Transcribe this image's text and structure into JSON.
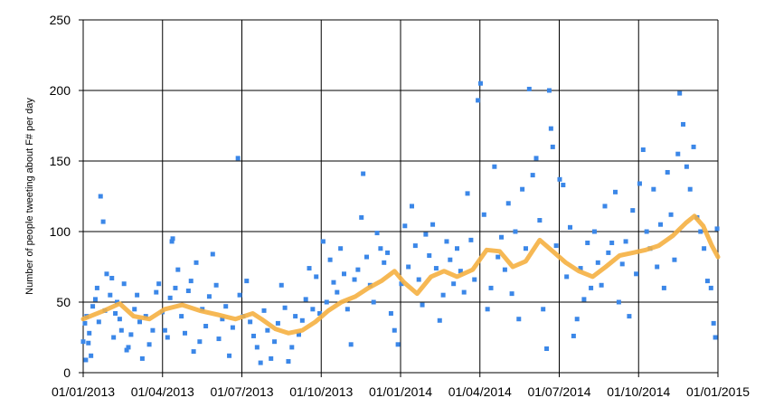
{
  "chart_data": {
    "type": "scatter",
    "title": "",
    "xlabel": "",
    "ylabel": "Number of people tweeting about F# per day",
    "x_tick_labels": [
      "01/01/2013",
      "01/04/2013",
      "01/07/2013",
      "01/10/2013",
      "01/01/2014",
      "01/04/2014",
      "01/07/2014",
      "01/10/2014",
      "01/01/2015"
    ],
    "x_range": [
      "2013-01-01",
      "2015-01-01"
    ],
    "y_tick_labels": [
      "0",
      "50",
      "100",
      "150",
      "200",
      "250"
    ],
    "ylim": [
      0,
      250
    ],
    "grid": true,
    "legend": "none",
    "colors": {
      "points": "#3b87e8",
      "trend": "#f5b041",
      "grid": "#000000"
    },
    "series": [
      {
        "kind": "scatter",
        "points": [
          [
            "2013-01-01",
            22
          ],
          [
            "2013-01-03",
            35
          ],
          [
            "2013-01-04",
            9
          ],
          [
            "2013-01-05",
            40
          ],
          [
            "2013-01-07",
            21
          ],
          [
            "2013-01-08",
            28
          ],
          [
            "2013-01-10",
            12
          ],
          [
            "2013-01-12",
            47
          ],
          [
            "2013-01-15",
            52
          ],
          [
            "2013-01-17",
            60
          ],
          [
            "2013-01-19",
            36
          ],
          [
            "2013-01-21",
            125
          ],
          [
            "2013-01-24",
            107
          ],
          [
            "2013-01-26",
            44
          ],
          [
            "2013-01-28",
            70
          ],
          [
            "2013-02-01",
            55
          ],
          [
            "2013-02-03",
            67
          ],
          [
            "2013-02-05",
            25
          ],
          [
            "2013-02-07",
            42
          ],
          [
            "2013-02-09",
            50
          ],
          [
            "2013-02-12",
            38
          ],
          [
            "2013-02-14",
            30
          ],
          [
            "2013-02-17",
            63
          ],
          [
            "2013-02-20",
            16
          ],
          [
            "2013-02-22",
            18
          ],
          [
            "2013-02-25",
            27
          ],
          [
            "2013-03-01",
            45
          ],
          [
            "2013-03-04",
            55
          ],
          [
            "2013-03-07",
            36
          ],
          [
            "2013-03-10",
            10
          ],
          [
            "2013-03-14",
            40
          ],
          [
            "2013-03-18",
            20
          ],
          [
            "2013-03-22",
            30
          ],
          [
            "2013-03-26",
            57
          ],
          [
            "2013-03-29",
            63
          ],
          [
            "2013-04-02",
            43
          ],
          [
            "2013-04-05",
            30
          ],
          [
            "2013-04-08",
            25
          ],
          [
            "2013-04-11",
            53
          ],
          [
            "2013-04-13",
            93
          ],
          [
            "2013-04-14",
            95
          ],
          [
            "2013-04-17",
            60
          ],
          [
            "2013-04-20",
            73
          ],
          [
            "2013-04-24",
            40
          ],
          [
            "2013-04-28",
            28
          ],
          [
            "2013-05-02",
            58
          ],
          [
            "2013-05-05",
            65
          ],
          [
            "2013-05-08",
            15
          ],
          [
            "2013-05-11",
            78
          ],
          [
            "2013-05-15",
            22
          ],
          [
            "2013-05-18",
            45
          ],
          [
            "2013-05-22",
            33
          ],
          [
            "2013-05-26",
            54
          ],
          [
            "2013-05-30",
            84
          ],
          [
            "2013-06-03",
            62
          ],
          [
            "2013-06-06",
            24
          ],
          [
            "2013-06-10",
            38
          ],
          [
            "2013-06-14",
            47
          ],
          [
            "2013-06-18",
            12
          ],
          [
            "2013-06-22",
            32
          ],
          [
            "2013-06-28",
            152
          ],
          [
            "2013-06-30",
            55
          ],
          [
            "2013-07-04",
            40
          ],
          [
            "2013-07-08",
            65
          ],
          [
            "2013-07-12",
            36
          ],
          [
            "2013-07-16",
            26
          ],
          [
            "2013-07-20",
            18
          ],
          [
            "2013-07-24",
            7
          ],
          [
            "2013-07-28",
            44
          ],
          [
            "2013-08-01",
            30
          ],
          [
            "2013-08-05",
            10
          ],
          [
            "2013-08-09",
            22
          ],
          [
            "2013-08-13",
            35
          ],
          [
            "2013-08-17",
            62
          ],
          [
            "2013-08-21",
            46
          ],
          [
            "2013-08-25",
            8
          ],
          [
            "2013-08-29",
            18
          ],
          [
            "2013-09-02",
            40
          ],
          [
            "2013-09-06",
            27
          ],
          [
            "2013-09-10",
            37
          ],
          [
            "2013-09-14",
            52
          ],
          [
            "2013-09-18",
            74
          ],
          [
            "2013-09-22",
            45
          ],
          [
            "2013-09-26",
            68
          ],
          [
            "2013-09-30",
            42
          ],
          [
            "2013-10-04",
            93
          ],
          [
            "2013-10-08",
            50
          ],
          [
            "2013-10-12",
            80
          ],
          [
            "2013-10-16",
            64
          ],
          [
            "2013-10-20",
            57
          ],
          [
            "2013-10-24",
            88
          ],
          [
            "2013-10-28",
            70
          ],
          [
            "2013-11-01",
            45
          ],
          [
            "2013-11-05",
            20
          ],
          [
            "2013-11-09",
            66
          ],
          [
            "2013-11-13",
            73
          ],
          [
            "2013-11-17",
            110
          ],
          [
            "2013-11-19",
            141
          ],
          [
            "2013-11-23",
            82
          ],
          [
            "2013-11-27",
            62
          ],
          [
            "2013-12-01",
            50
          ],
          [
            "2013-12-05",
            99
          ],
          [
            "2013-12-09",
            88
          ],
          [
            "2013-12-13",
            78
          ],
          [
            "2013-12-17",
            85
          ],
          [
            "2013-12-21",
            42
          ],
          [
            "2013-12-25",
            30
          ],
          [
            "2013-12-29",
            20
          ],
          [
            "2014-01-02",
            63
          ],
          [
            "2014-01-06",
            104
          ],
          [
            "2014-01-10",
            75
          ],
          [
            "2014-01-14",
            118
          ],
          [
            "2014-01-18",
            90
          ],
          [
            "2014-01-22",
            66
          ],
          [
            "2014-01-26",
            48
          ],
          [
            "2014-01-30",
            98
          ],
          [
            "2014-02-03",
            83
          ],
          [
            "2014-02-07",
            105
          ],
          [
            "2014-02-11",
            74
          ],
          [
            "2014-02-15",
            37
          ],
          [
            "2014-02-19",
            55
          ],
          [
            "2014-02-23",
            93
          ],
          [
            "2014-02-27",
            80
          ],
          [
            "2014-03-03",
            63
          ],
          [
            "2014-03-07",
            88
          ],
          [
            "2014-03-11",
            72
          ],
          [
            "2014-03-15",
            57
          ],
          [
            "2014-03-19",
            127
          ],
          [
            "2014-03-23",
            94
          ],
          [
            "2014-03-27",
            66
          ],
          [
            "2014-03-31",
            193
          ],
          [
            "2014-04-03",
            205
          ],
          [
            "2014-04-07",
            112
          ],
          [
            "2014-04-11",
            45
          ],
          [
            "2014-04-15",
            60
          ],
          [
            "2014-04-19",
            146
          ],
          [
            "2014-04-23",
            82
          ],
          [
            "2014-04-27",
            96
          ],
          [
            "2014-05-01",
            73
          ],
          [
            "2014-05-05",
            120
          ],
          [
            "2014-05-09",
            56
          ],
          [
            "2014-05-13",
            100
          ],
          [
            "2014-05-17",
            38
          ],
          [
            "2014-05-21",
            130
          ],
          [
            "2014-05-25",
            88
          ],
          [
            "2014-05-29",
            201
          ],
          [
            "2014-06-02",
            140
          ],
          [
            "2014-06-06",
            152
          ],
          [
            "2014-06-10",
            108
          ],
          [
            "2014-06-14",
            45
          ],
          [
            "2014-06-18",
            17
          ],
          [
            "2014-06-21",
            200
          ],
          [
            "2014-06-23",
            173
          ],
          [
            "2014-06-25",
            160
          ],
          [
            "2014-06-29",
            90
          ],
          [
            "2014-07-03",
            137
          ],
          [
            "2014-07-07",
            133
          ],
          [
            "2014-07-11",
            68
          ],
          [
            "2014-07-15",
            103
          ],
          [
            "2014-07-19",
            26
          ],
          [
            "2014-07-23",
            38
          ],
          [
            "2014-07-27",
            74
          ],
          [
            "2014-07-31",
            52
          ],
          [
            "2014-08-04",
            92
          ],
          [
            "2014-08-08",
            60
          ],
          [
            "2014-08-12",
            100
          ],
          [
            "2014-08-16",
            78
          ],
          [
            "2014-08-20",
            62
          ],
          [
            "2014-08-24",
            118
          ],
          [
            "2014-08-28",
            85
          ],
          [
            "2014-09-01",
            92
          ],
          [
            "2014-09-05",
            128
          ],
          [
            "2014-09-09",
            50
          ],
          [
            "2014-09-13",
            77
          ],
          [
            "2014-09-17",
            93
          ],
          [
            "2014-09-21",
            40
          ],
          [
            "2014-09-25",
            115
          ],
          [
            "2014-09-29",
            70
          ],
          [
            "2014-10-03",
            134
          ],
          [
            "2014-10-07",
            158
          ],
          [
            "2014-10-11",
            100
          ],
          [
            "2014-10-15",
            88
          ],
          [
            "2014-10-19",
            130
          ],
          [
            "2014-10-23",
            75
          ],
          [
            "2014-10-27",
            105
          ],
          [
            "2014-10-31",
            60
          ],
          [
            "2014-11-04",
            142
          ],
          [
            "2014-11-08",
            112
          ],
          [
            "2014-11-12",
            80
          ],
          [
            "2014-11-16",
            155
          ],
          [
            "2014-11-18",
            198
          ],
          [
            "2014-11-22",
            176
          ],
          [
            "2014-11-26",
            146
          ],
          [
            "2014-11-30",
            130
          ],
          [
            "2014-12-04",
            160
          ],
          [
            "2014-12-08",
            110
          ],
          [
            "2014-12-12",
            100
          ],
          [
            "2014-12-16",
            88
          ],
          [
            "2014-12-20",
            65
          ],
          [
            "2014-12-24",
            60
          ],
          [
            "2014-12-27",
            35
          ],
          [
            "2014-12-29",
            25
          ],
          [
            "2014-12-31",
            102
          ]
        ]
      },
      {
        "kind": "line",
        "points": [
          [
            "2013-01-01",
            38
          ],
          [
            "2013-01-25",
            44
          ],
          [
            "2013-02-12",
            49
          ],
          [
            "2013-02-28",
            40
          ],
          [
            "2013-03-18",
            38
          ],
          [
            "2013-04-05",
            45
          ],
          [
            "2013-04-25",
            48
          ],
          [
            "2013-05-15",
            44
          ],
          [
            "2013-06-05",
            41
          ],
          [
            "2013-06-25",
            38
          ],
          [
            "2013-07-15",
            42
          ],
          [
            "2013-07-25",
            38
          ],
          [
            "2013-08-10",
            31
          ],
          [
            "2013-08-25",
            28
          ],
          [
            "2013-09-10",
            30
          ],
          [
            "2013-09-25",
            36
          ],
          [
            "2013-10-10",
            44
          ],
          [
            "2013-10-25",
            50
          ],
          [
            "2013-11-10",
            54
          ],
          [
            "2013-11-25",
            60
          ],
          [
            "2013-12-10",
            65
          ],
          [
            "2013-12-25",
            72
          ],
          [
            "2014-01-05",
            64
          ],
          [
            "2014-01-20",
            56
          ],
          [
            "2014-02-05",
            68
          ],
          [
            "2014-02-20",
            72
          ],
          [
            "2014-03-07",
            68
          ],
          [
            "2014-03-25",
            73
          ],
          [
            "2014-04-10",
            87
          ],
          [
            "2014-04-25",
            86
          ],
          [
            "2014-05-10",
            75
          ],
          [
            "2014-05-25",
            79
          ],
          [
            "2014-06-10",
            94
          ],
          [
            "2014-06-25",
            86
          ],
          [
            "2014-07-10",
            78
          ],
          [
            "2014-07-25",
            72
          ],
          [
            "2014-08-10",
            68
          ],
          [
            "2014-08-25",
            75
          ],
          [
            "2014-09-10",
            83
          ],
          [
            "2014-09-25",
            85
          ],
          [
            "2014-10-10",
            87
          ],
          [
            "2014-10-25",
            90
          ],
          [
            "2014-11-10",
            97
          ],
          [
            "2014-11-25",
            106
          ],
          [
            "2014-12-05",
            111
          ],
          [
            "2014-12-15",
            104
          ],
          [
            "2014-12-25",
            90
          ],
          [
            "2015-01-01",
            82
          ]
        ]
      }
    ]
  }
}
